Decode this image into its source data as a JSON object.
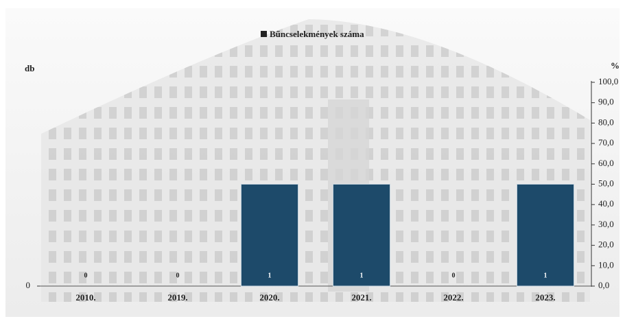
{
  "chart_data": {
    "type": "bar",
    "legend_label": "Bűncselekmények száma",
    "y_axis_label": "db",
    "y2_axis_label": "%",
    "categories": [
      "2010.",
      "2019.",
      "2020.",
      "2021.",
      "2022.",
      "2023."
    ],
    "series": [
      {
        "name": "Bűncselekmények száma",
        "color": "#1d4a6a",
        "values": [
          0,
          0,
          1,
          1,
          0,
          1
        ]
      }
    ],
    "ylim": [
      0,
      2
    ],
    "yticks": [
      0
    ],
    "y2lim": [
      0,
      100
    ],
    "y2ticks": [
      {
        "value": 0,
        "label": "0,0"
      },
      {
        "value": 10,
        "label": "10,0"
      },
      {
        "value": 20,
        "label": "20,0"
      },
      {
        "value": 30,
        "label": "30,0"
      },
      {
        "value": 40,
        "label": "40,0"
      },
      {
        "value": 50,
        "label": "50,0"
      },
      {
        "value": 60,
        "label": "60,0"
      },
      {
        "value": 70,
        "label": "70,0"
      },
      {
        "value": 80,
        "label": "80,0"
      },
      {
        "value": 90,
        "label": "90,0"
      },
      {
        "value": 100,
        "label": "100,0"
      }
    ]
  }
}
